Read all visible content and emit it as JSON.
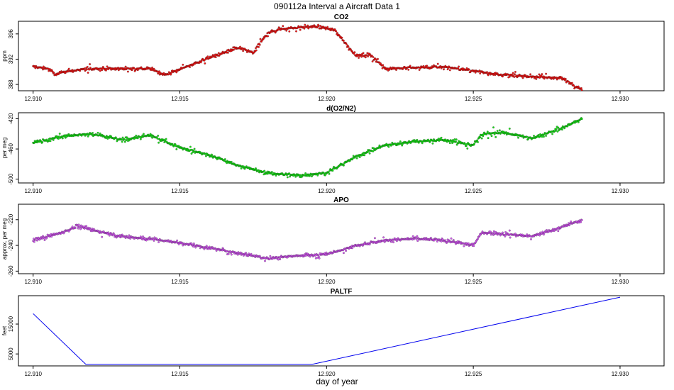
{
  "figure": {
    "title": "090112a   Interval a Aircraft Data 1",
    "xlabel": "day of year"
  },
  "chart_data": [
    {
      "type": "scatter",
      "title": "CO2",
      "ylabel": "ppm",
      "color": "#ee0000",
      "xlim": [
        12.9095,
        12.9315
      ],
      "ylim": [
        387.0,
        398.0
      ],
      "xticks": [
        12.91,
        12.915,
        12.92,
        12.925,
        12.93
      ],
      "xtick_labels": [
        "12.910",
        "12.915",
        "12.920",
        "12.925",
        "12.930"
      ],
      "yticks": [
        388,
        392,
        396
      ],
      "ytick_labels": [
        "388",
        "392",
        "396"
      ],
      "profile": {
        "x": [
          12.91,
          12.9105,
          12.9108,
          12.911,
          12.912,
          12.914,
          12.9145,
          12.915,
          12.916,
          12.917,
          12.9175,
          12.918,
          12.9185,
          12.919,
          12.9195,
          12.92,
          12.9203,
          12.921,
          12.9215,
          12.922,
          12.924,
          12.926,
          12.928,
          12.9287
        ],
        "y": [
          390.8,
          390.5,
          389.5,
          390.0,
          390.5,
          390.5,
          389.5,
          390.4,
          392.2,
          393.8,
          393.0,
          396.2,
          396.8,
          397.0,
          397.2,
          396.9,
          396.5,
          392.5,
          392.7,
          390.5,
          390.8,
          389.5,
          389.0,
          387.2
        ]
      },
      "n_points": 950
    },
    {
      "type": "scatter",
      "title": "d(O2/N2)",
      "ylabel": "per meg",
      "color": "#00dd00",
      "xlim": [
        12.9095,
        12.9315
      ],
      "ylim": [
        -505,
        -412
      ],
      "xticks": [
        12.91,
        12.915,
        12.92,
        12.925,
        12.93
      ],
      "xtick_labels": [
        "12.910",
        "12.915",
        "12.920",
        "12.925",
        "12.930"
      ],
      "yticks": [
        -500,
        -460,
        -420
      ],
      "ytick_labels": [
        "-500",
        "-460",
        "-420"
      ],
      "profile": {
        "x": [
          12.91,
          12.911,
          12.912,
          12.913,
          12.914,
          12.915,
          12.916,
          12.917,
          12.918,
          12.919,
          12.92,
          12.921,
          12.922,
          12.923,
          12.924,
          12.925,
          12.9253,
          12.926,
          12.927,
          12.928,
          12.9287
        ],
        "y": [
          -452,
          -443,
          -440,
          -448,
          -442,
          -458,
          -468,
          -482,
          -492,
          -495,
          -492,
          -470,
          -455,
          -450,
          -448,
          -455,
          -440,
          -438,
          -446,
          -433,
          -420
        ]
      },
      "n_points": 950
    },
    {
      "type": "scatter",
      "title": "APO",
      "ylabel": "approx. per meg",
      "color": "#cc44ee",
      "xlim": [
        12.9095,
        12.9315
      ],
      "ylim": [
        -262,
        -208
      ],
      "xticks": [
        12.91,
        12.915,
        12.92,
        12.925,
        12.93
      ],
      "xtick_labels": [
        "12.910",
        "12.915",
        "12.920",
        "12.925",
        "12.930"
      ],
      "yticks": [
        -260,
        -240,
        -220
      ],
      "ytick_labels": [
        "-260",
        "-240",
        "-220"
      ],
      "profile": {
        "x": [
          12.91,
          12.911,
          12.9115,
          12.912,
          12.913,
          12.914,
          12.915,
          12.916,
          12.917,
          12.918,
          12.919,
          12.92,
          12.921,
          12.922,
          12.923,
          12.924,
          12.925,
          12.9253,
          12.926,
          12.927,
          12.928,
          12.9287
        ],
        "y": [
          -236,
          -230,
          -225,
          -228,
          -233,
          -235,
          -238,
          -242,
          -246,
          -250,
          -248,
          -247,
          -240,
          -236,
          -235,
          -236,
          -240,
          -230,
          -231,
          -233,
          -226,
          -220
        ]
      },
      "n_points": 950
    },
    {
      "type": "line",
      "title": "PALTF",
      "ylabel": "feet",
      "color": "#0000ee",
      "xlim": [
        12.9095,
        12.9315
      ],
      "ylim": [
        1000,
        24500
      ],
      "xticks": [
        12.91,
        12.915,
        12.92,
        12.925,
        12.93
      ],
      "xtick_labels": [
        "12.910",
        "12.915",
        "12.920",
        "12.925",
        "12.930"
      ],
      "yticks": [
        5000,
        15000
      ],
      "ytick_labels": [
        "5000",
        "15000"
      ],
      "x": [
        12.91,
        12.9118,
        12.9195,
        12.93
      ],
      "y": [
        18500,
        1500,
        1500,
        24000
      ]
    }
  ]
}
